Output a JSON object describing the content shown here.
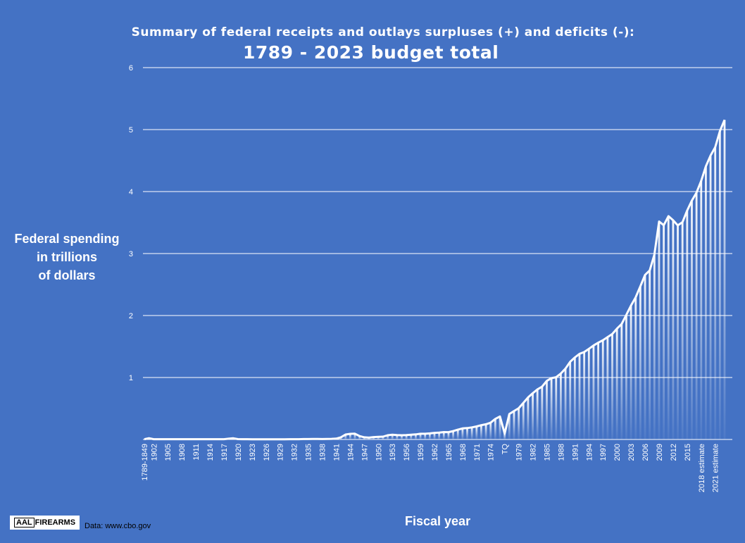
{
  "title_line1": "Summary of federal receipts and outlays surpluses (+) and deficits (-):",
  "title_line2": "1789 - 2023 budget total",
  "ylabel_lines": [
    "Federal spending",
    "in trillions",
    "of dollars"
  ],
  "xlabel": "Fiscal year",
  "logo": {
    "part1": "AAL",
    "part2": "FIREARMS"
  },
  "source": "Data: www.cbo.gov",
  "colors": {
    "background": "#4472C4",
    "line": "#FFFFFF",
    "gridline": "#FFFFFF"
  },
  "chart_data": {
    "type": "area",
    "title": "Summary of federal receipts and outlays surpluses (+) and deficits (-): 1789 - 2023 budget total",
    "xlabel": "Fiscal year",
    "ylabel": "Federal spending in trillions of dollars",
    "ylim": [
      0,
      6
    ],
    "yticks": [
      "1",
      "2",
      "3",
      "4",
      "5",
      "6"
    ],
    "grid": true,
    "categories": [
      "1789-1849",
      "1901",
      "1902",
      "1903",
      "1904",
      "1905",
      "1906",
      "1907",
      "1908",
      "1909",
      "1910",
      "1911",
      "1912",
      "1913",
      "1914",
      "1915",
      "1916",
      "1917",
      "1918",
      "1919",
      "1920",
      "1921",
      "1922",
      "1923",
      "1924",
      "1925",
      "1926",
      "1927",
      "1928",
      "1929",
      "1930",
      "1931",
      "1932",
      "1933",
      "1934",
      "1935",
      "1936",
      "1937",
      "1938",
      "1939",
      "1940",
      "1941",
      "1942",
      "1943",
      "1944",
      "1945",
      "1946",
      "1947",
      "1948",
      "1949",
      "1950",
      "1951",
      "1952",
      "1953",
      "1954",
      "1955",
      "1956",
      "1957",
      "1958",
      "1959",
      "1960",
      "1961",
      "1962",
      "1963",
      "1964",
      "1965",
      "1966",
      "1967",
      "1968",
      "1969",
      "1970",
      "1971",
      "1972",
      "1973",
      "1974",
      "1975",
      "1976",
      "TQ",
      "1977",
      "1978",
      "1979",
      "1980",
      "1981",
      "1982",
      "1983",
      "1984",
      "1985",
      "1986",
      "1987",
      "1988",
      "1989",
      "1990",
      "1991",
      "1992",
      "1993",
      "1994",
      "1995",
      "1996",
      "1997",
      "1998",
      "1999",
      "2000",
      "2001",
      "2002",
      "2003",
      "2004",
      "2005",
      "2006",
      "2007",
      "2008",
      "2009",
      "2010",
      "2011",
      "2012",
      "2013",
      "2014",
      "2015",
      "2016",
      "2017",
      "2018 estimate",
      "2019 estimate",
      "2020 estimate",
      "2021 estimate",
      "2022 estimate",
      "2023 estimate"
    ],
    "tick_labels": [
      "1789-1849",
      "1902",
      "1905",
      "1908",
      "1911",
      "1914",
      "1917",
      "1920",
      "1923",
      "1926",
      "1929",
      "1932",
      "1935",
      "1938",
      "1941",
      "1944",
      "1947",
      "1950",
      "1953",
      "1956",
      "1959",
      "1962",
      "1965",
      "1968",
      "1971",
      "1974",
      "TQ",
      "1979",
      "1982",
      "1985",
      "1988",
      "1991",
      "1994",
      "1997",
      "2000",
      "2003",
      "2006",
      "2009",
      "2012",
      "2015",
      "2018 estimate",
      "2021 estimate"
    ],
    "values": [
      0.005,
      0.02,
      0.005,
      0.005,
      0.005,
      0.005,
      0.005,
      0.005,
      0.005,
      0.005,
      0.005,
      0.005,
      0.005,
      0.005,
      0.005,
      0.005,
      0.005,
      0.005,
      0.013,
      0.019,
      0.006,
      0.005,
      0.004,
      0.003,
      0.003,
      0.003,
      0.003,
      0.003,
      0.003,
      0.003,
      0.003,
      0.004,
      0.005,
      0.005,
      0.007,
      0.007,
      0.008,
      0.008,
      0.007,
      0.009,
      0.01,
      0.014,
      0.035,
      0.079,
      0.091,
      0.093,
      0.055,
      0.035,
      0.03,
      0.039,
      0.043,
      0.045,
      0.068,
      0.076,
      0.071,
      0.068,
      0.071,
      0.077,
      0.082,
      0.092,
      0.092,
      0.098,
      0.107,
      0.111,
      0.119,
      0.118,
      0.135,
      0.158,
      0.178,
      0.184,
      0.196,
      0.21,
      0.231,
      0.246,
      0.27,
      0.332,
      0.372,
      0.096,
      0.41,
      0.459,
      0.504,
      0.591,
      0.678,
      0.746,
      0.808,
      0.852,
      0.946,
      0.99,
      1.004,
      1.064,
      1.144,
      1.253,
      1.324,
      1.382,
      1.41,
      1.462,
      1.516,
      1.561,
      1.601,
      1.652,
      1.702,
      1.789,
      1.863,
      2.011,
      2.16,
      2.293,
      2.472,
      2.655,
      2.728,
      2.983,
      3.517,
      3.457,
      3.603,
      3.537,
      3.455,
      3.506,
      3.692,
      3.853,
      3.982,
      4.173,
      4.407,
      4.582,
      4.716,
      4.976,
      5.157
    ]
  }
}
